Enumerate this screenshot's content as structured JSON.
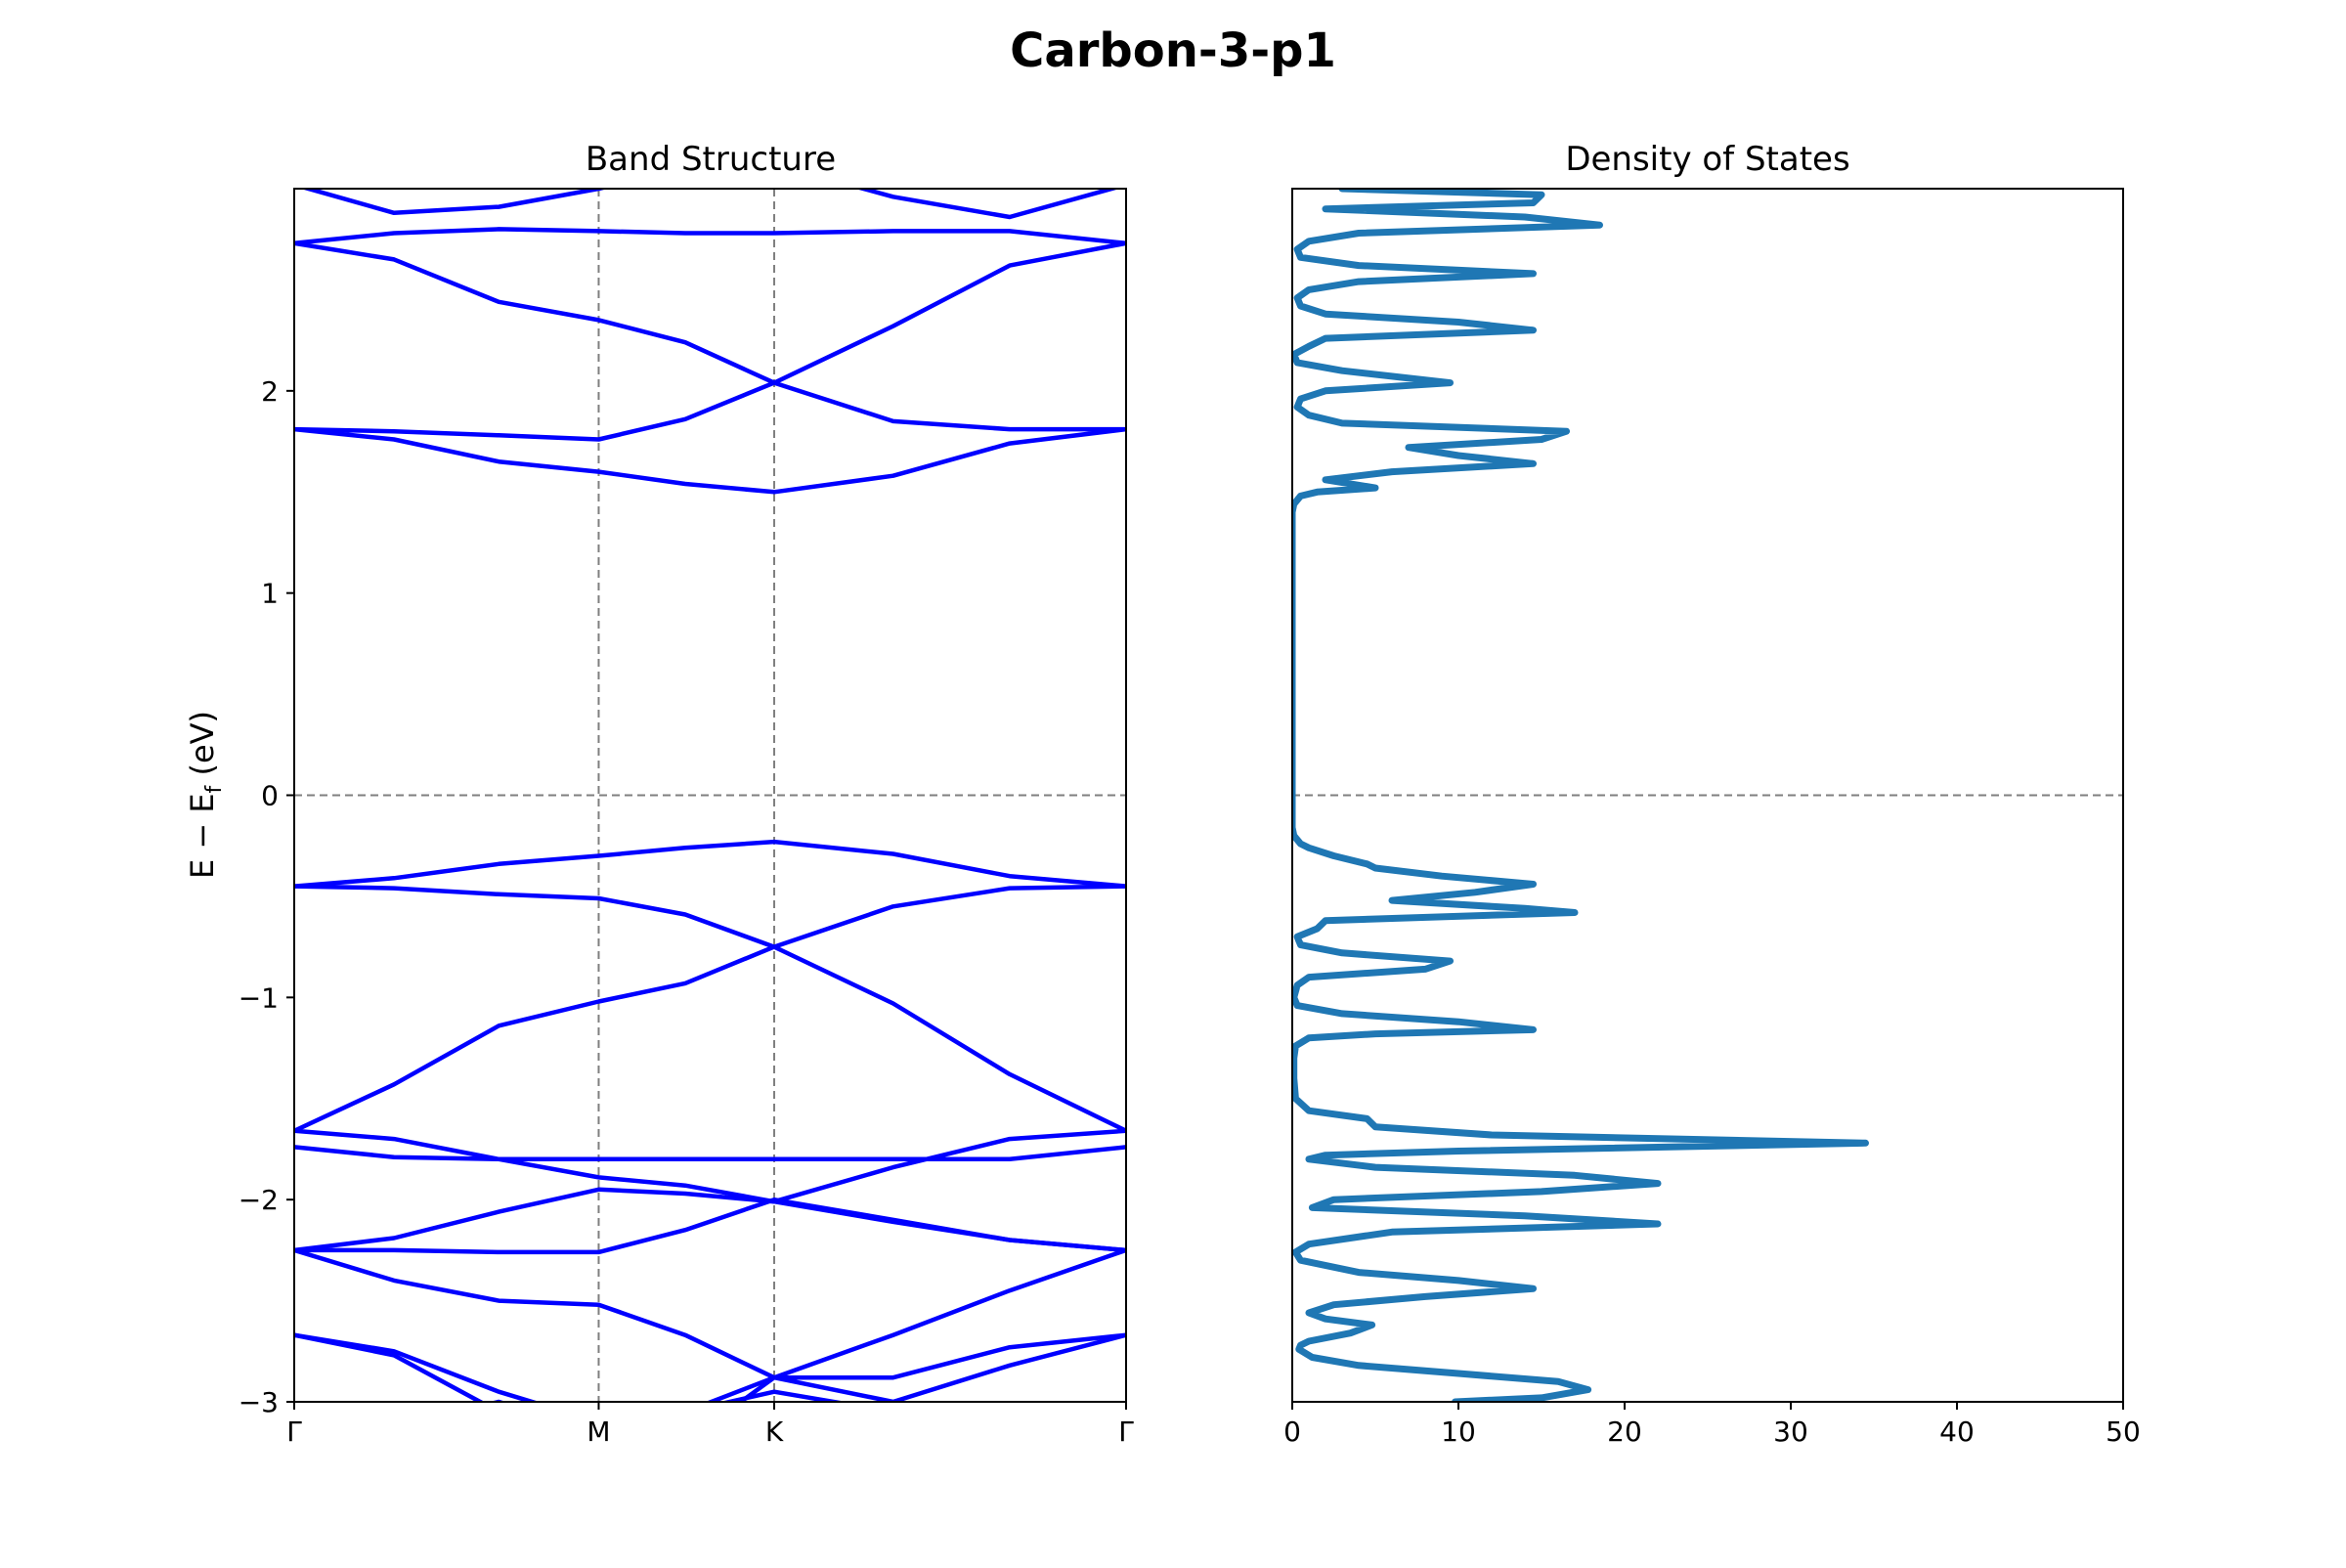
{
  "figure": {
    "title": "Carbon-3-p1"
  },
  "chart_data": [
    {
      "type": "line",
      "title": "Band Structure",
      "xlabel": "",
      "ylabel": "E − E_f (eV)",
      "ylabel_main": "E − E",
      "ylabel_sub": "f",
      "ylabel_unit": " (eV)",
      "ylim": [
        -3,
        3
      ],
      "yticks": [
        -3,
        -2,
        -1,
        0,
        1,
        2
      ],
      "ytick_labels": [
        "−3",
        "−2",
        "−1",
        "0",
        "1",
        "2"
      ],
      "xticks": [
        {
          "label": "Γ",
          "k": 0.0
        },
        {
          "label": "M",
          "k": 0.366
        },
        {
          "label": "K",
          "k": 0.577
        },
        {
          "label": "Γ",
          "k": 1.0
        }
      ],
      "fermi_level": 0,
      "line_color": "#0000ff",
      "guide_color": "#7f7f7f",
      "bands": [
        {
          "k": [
            0,
            0.12,
            0.246,
            0.366,
            0.47,
            0.577,
            0.72,
            0.86,
            1.0
          ],
          "e": [
            -3.2,
            -3.12,
            -3.0,
            -3.15,
            -3.12,
            -3.1,
            -3.2,
            -3.2,
            -3.1
          ]
        },
        {
          "k": [
            0,
            0.12,
            0.246,
            0.366,
            0.47,
            0.577,
            0.72,
            0.86,
            1.0
          ],
          "e": [
            -3.4,
            -3.3,
            -3.25,
            -3.1,
            -3.05,
            -2.95,
            -3.05,
            -3.2,
            -3.3
          ]
        },
        {
          "k": [
            0,
            0.12,
            0.246,
            0.366,
            0.47,
            0.577,
            0.72,
            0.86,
            1.0
          ],
          "e": [
            -2.67,
            -2.75,
            -2.95,
            -3.1,
            -3.05,
            -2.88,
            -2.88,
            -2.73,
            -2.67
          ]
        },
        {
          "k": [
            0,
            0.12,
            0.246,
            0.366,
            0.47,
            0.577,
            0.72,
            0.86,
            1.0
          ],
          "e": [
            -2.67,
            -2.77,
            -3.05,
            -3.3,
            -3.2,
            -2.88,
            -3.0,
            -2.82,
            -2.67
          ]
        },
        {
          "k": [
            0,
            0.12,
            0.246,
            0.366,
            0.47,
            0.577,
            0.72,
            0.86,
            1.0
          ],
          "e": [
            -2.25,
            -2.4,
            -2.5,
            -2.52,
            -2.67,
            -2.88,
            -2.67,
            -2.45,
            -2.25
          ]
        },
        {
          "k": [
            0,
            0.12,
            0.246,
            0.366,
            0.47,
            0.577,
            0.72,
            0.86,
            1.0
          ],
          "e": [
            -2.25,
            -2.25,
            -2.26,
            -2.26,
            -2.15,
            -2.0,
            -2.1,
            -2.2,
            -2.25
          ]
        },
        {
          "k": [
            0,
            0.12,
            0.246,
            0.366,
            0.47,
            0.577,
            0.72,
            0.86,
            1.0
          ],
          "e": [
            -2.25,
            -2.19,
            -2.06,
            -1.95,
            -1.97,
            -2.01,
            -2.11,
            -2.2,
            -2.25
          ]
        },
        {
          "k": [
            0,
            0.12,
            0.246,
            0.366,
            0.47,
            0.577,
            0.72,
            0.86,
            1.0
          ],
          "e": [
            -1.74,
            -1.79,
            -1.8,
            -1.8,
            -1.8,
            -1.8,
            -1.8,
            -1.8,
            -1.74
          ]
        },
        {
          "k": [
            0,
            0.12,
            0.246,
            0.366,
            0.47,
            0.577,
            0.72,
            0.86,
            1.0
          ],
          "e": [
            -1.66,
            -1.7,
            -1.8,
            -1.89,
            -1.93,
            -2.01,
            -1.84,
            -1.7,
            -1.66
          ]
        },
        {
          "k": [
            0,
            0.12,
            0.246,
            0.366,
            0.47,
            0.577,
            0.72,
            0.86,
            1.0
          ],
          "e": [
            -1.66,
            -1.43,
            -1.14,
            -1.02,
            -0.93,
            -0.75,
            -1.03,
            -1.38,
            -1.66
          ]
        },
        {
          "k": [
            0,
            0.12,
            0.246,
            0.366,
            0.47,
            0.577,
            0.72,
            0.86,
            1.0
          ],
          "e": [
            -0.45,
            -0.46,
            -0.49,
            -0.51,
            -0.59,
            -0.75,
            -0.55,
            -0.46,
            -0.45
          ]
        },
        {
          "k": [
            0,
            0.12,
            0.246,
            0.366,
            0.47,
            0.577,
            0.72,
            0.86,
            1.0
          ],
          "e": [
            -0.45,
            -0.41,
            -0.34,
            -0.3,
            -0.26,
            -0.23,
            -0.29,
            -0.4,
            -0.45
          ]
        },
        {
          "k": [
            0,
            0.12,
            0.246,
            0.366,
            0.47,
            0.577,
            0.72,
            0.86,
            1.0
          ],
          "e": [
            1.81,
            1.76,
            1.65,
            1.6,
            1.54,
            1.5,
            1.58,
            1.74,
            1.81
          ]
        },
        {
          "k": [
            0,
            0.12,
            0.246,
            0.366,
            0.47,
            0.577,
            0.72,
            0.86,
            1.0
          ],
          "e": [
            1.81,
            1.8,
            1.78,
            1.76,
            1.86,
            2.04,
            1.85,
            1.81,
            1.81
          ]
        },
        {
          "k": [
            0,
            0.12,
            0.246,
            0.366,
            0.47,
            0.577,
            0.72,
            0.86,
            1.0
          ],
          "e": [
            2.73,
            2.65,
            2.44,
            2.35,
            2.24,
            2.04,
            2.32,
            2.62,
            2.73
          ]
        },
        {
          "k": [
            0,
            0.12,
            0.246,
            0.366,
            0.47,
            0.577,
            0.72,
            0.86,
            1.0
          ],
          "e": [
            2.73,
            2.78,
            2.8,
            2.79,
            2.78,
            2.78,
            2.79,
            2.79,
            2.73
          ]
        },
        {
          "k": [
            0,
            0.12,
            0.246,
            0.366,
            0.47,
            0.577,
            0.72,
            0.86,
            1.0
          ],
          "e": [
            3.02,
            2.88,
            2.91,
            3.0,
            3.1,
            3.12,
            2.96,
            2.86,
            3.02
          ]
        }
      ]
    },
    {
      "type": "line",
      "title": "Density of States",
      "xlabel": "",
      "ylabel": "",
      "xlim": [
        0,
        50
      ],
      "ylim": [
        -3,
        3
      ],
      "xticks": [
        0,
        10,
        20,
        30,
        40,
        50
      ],
      "line_color": "#1f77b4",
      "fermi_level": 0,
      "series": [
        {
          "energy": [
            -3.0,
            -2.98,
            -2.94,
            -2.9,
            -2.86,
            -2.82,
            -2.78,
            -2.74,
            -2.72,
            -2.7,
            -2.66,
            -2.62,
            -2.59,
            -2.56,
            -2.52,
            -2.48,
            -2.44,
            -2.4,
            -2.36,
            -2.3,
            -2.26,
            -2.22,
            -2.16,
            -2.12,
            -2.08,
            -2.04,
            -2.0,
            -1.96,
            -1.92,
            -1.88,
            -1.84,
            -1.8,
            -1.78,
            -1.76,
            -1.72,
            -1.68,
            -1.64,
            -1.6,
            -1.56,
            -1.5,
            -1.4,
            -1.3,
            -1.24,
            -1.2,
            -1.18,
            -1.16,
            -1.12,
            -1.08,
            -1.04,
            -1.0,
            -0.94,
            -0.9,
            -0.86,
            -0.82,
            -0.78,
            -0.74,
            -0.7,
            -0.66,
            -0.62,
            -0.58,
            -0.56,
            -0.52,
            -0.48,
            -0.44,
            -0.4,
            -0.36,
            -0.34,
            -0.3,
            -0.26,
            -0.24,
            -0.2,
            -0.16,
            -0.12,
            -0.08,
            0.0,
            0.5,
            1.0,
            1.4,
            1.44,
            1.48,
            1.5,
            1.52,
            1.56,
            1.6,
            1.64,
            1.68,
            1.72,
            1.76,
            1.8,
            1.84,
            1.88,
            1.92,
            1.96,
            2.0,
            2.04,
            2.1,
            2.14,
            2.18,
            2.22,
            2.26,
            2.3,
            2.34,
            2.38,
            2.42,
            2.46,
            2.5,
            2.54,
            2.58,
            2.62,
            2.66,
            2.7,
            2.74,
            2.78,
            2.82,
            2.86,
            2.9,
            2.93,
            2.97,
            3.0
          ],
          "dos": [
            9.8,
            15.0,
            17.8,
            16.0,
            10.0,
            4.0,
            1.2,
            0.4,
            0.5,
            1.0,
            3.5,
            4.8,
            2.0,
            1.0,
            2.5,
            8.0,
            14.5,
            10.0,
            4.0,
            0.5,
            0.2,
            1.0,
            6.0,
            22.0,
            14.0,
            1.2,
            2.5,
            15.0,
            22.0,
            17.0,
            5.0,
            1.0,
            2.0,
            10.0,
            34.5,
            12.0,
            5.0,
            4.5,
            1.0,
            0.2,
            0.1,
            0.1,
            0.2,
            1.0,
            5.0,
            14.5,
            10.0,
            3.0,
            0.3,
            0.1,
            0.3,
            1.0,
            8.0,
            9.5,
            3.0,
            0.5,
            0.3,
            1.5,
            2.0,
            17.0,
            14.0,
            6.0,
            11.0,
            14.5,
            9.0,
            5.0,
            4.5,
            2.5,
            1.0,
            0.5,
            0.1,
            0.0,
            0.0,
            0.0,
            0.0,
            0.0,
            0.0,
            0.0,
            0.1,
            0.5,
            1.5,
            5.0,
            2.0,
            6.0,
            14.5,
            10.0,
            7.0,
            15.0,
            16.5,
            3.0,
            1.0,
            0.3,
            0.5,
            2.0,
            9.5,
            3.0,
            0.3,
            0.1,
            1.0,
            2.0,
            14.5,
            10.0,
            2.0,
            0.5,
            0.3,
            1.0,
            4.0,
            14.5,
            4.0,
            0.5,
            0.3,
            1.0,
            4.0,
            18.5,
            14.0,
            2.0,
            14.5,
            15.0,
            3.0
          ]
        }
      ]
    }
  ]
}
